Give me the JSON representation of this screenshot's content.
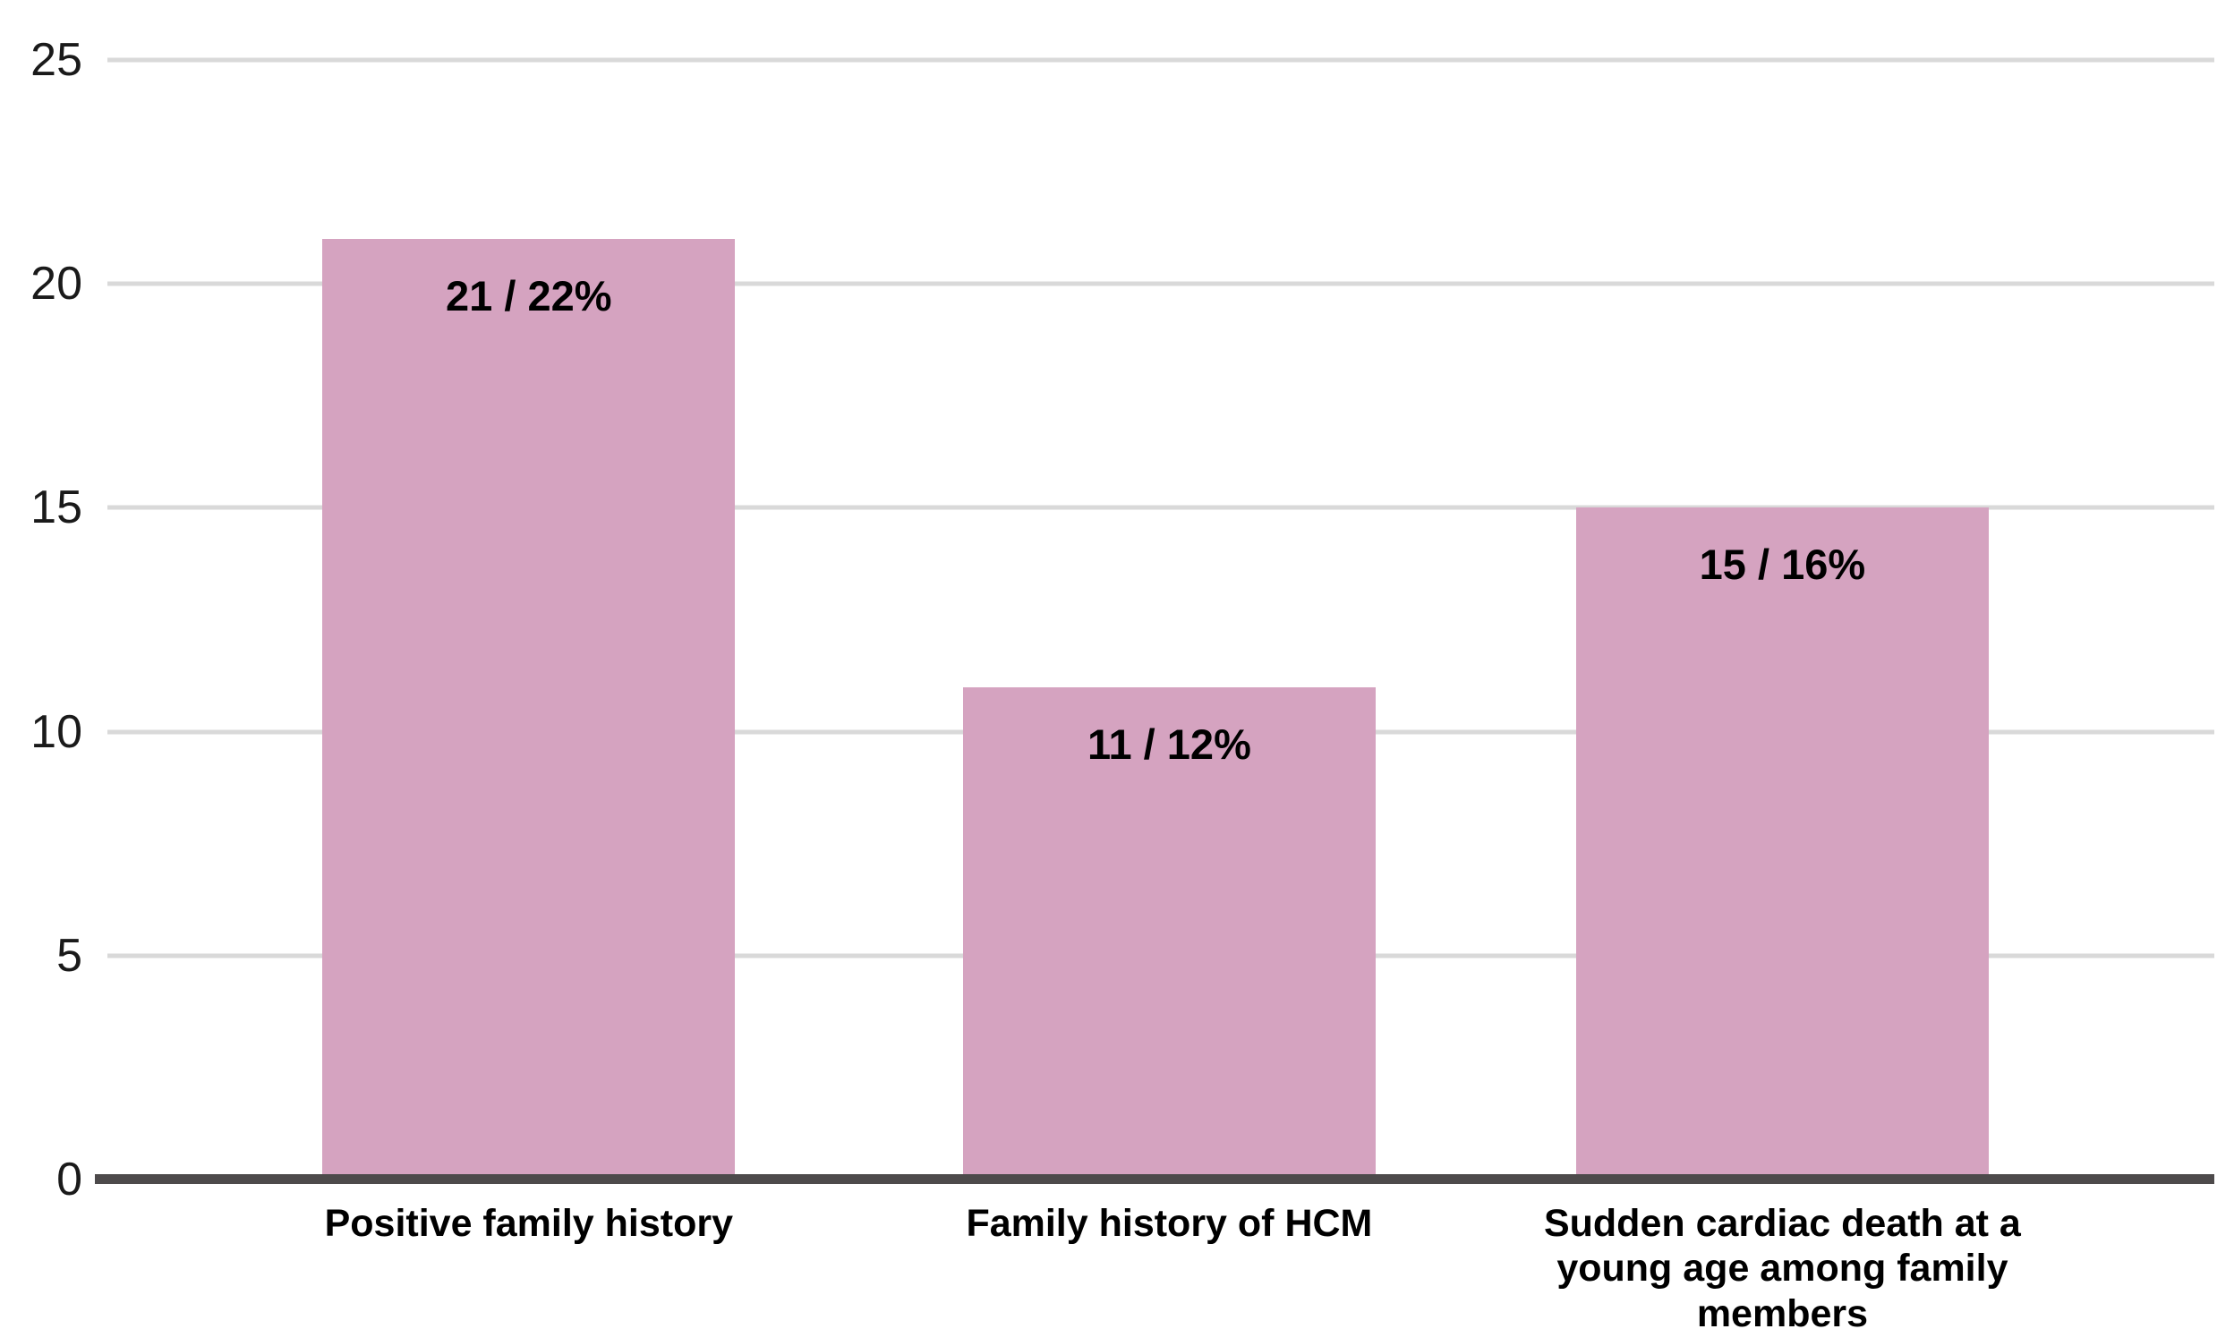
{
  "chart_data": {
    "type": "bar",
    "title": "",
    "xlabel": "",
    "ylabel": "",
    "categories": [
      "Positive family history",
      "Family history of HCM",
      "Sudden cardiac death at a young age among family members"
    ],
    "values": [
      21,
      11,
      15
    ],
    "bar_labels": [
      "21 / 22%",
      "11 / 12%",
      "15 / 16%"
    ],
    "ylim": [
      0,
      25
    ],
    "yticks": [
      0,
      5,
      10,
      15,
      20,
      25
    ],
    "grid": "horizontal-only",
    "legend_position": "none",
    "colors": {
      "bar_fill": "#d5a3c0",
      "gridline": "#d9d9d9",
      "x_axis_line": "#4d4a4b",
      "tick_text": "#1a1a1a",
      "label_text": "#000000",
      "background": "#ffffff"
    }
  }
}
